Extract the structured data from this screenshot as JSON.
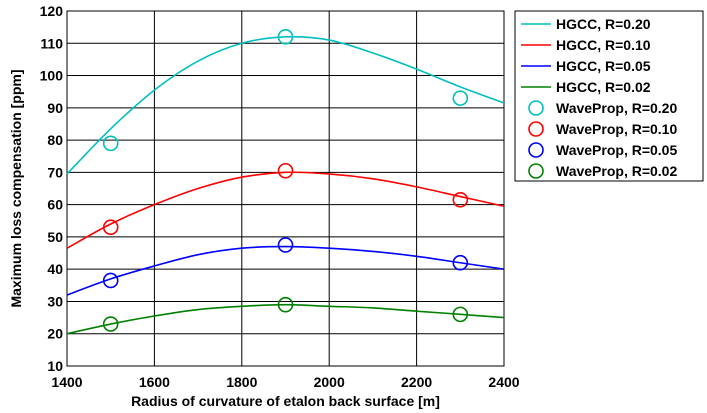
{
  "chart_data": {
    "type": "line",
    "xlabel": "Radius of curvature of etalon back surface [m]",
    "ylabel": "Maximum loss compensation [ppm]",
    "xlim": [
      1400,
      2400
    ],
    "ylim": [
      10,
      120
    ],
    "xticks": [
      1400,
      1600,
      1800,
      2000,
      2200,
      2400
    ],
    "yticks": [
      10,
      20,
      30,
      40,
      50,
      60,
      70,
      80,
      90,
      100,
      110,
      120
    ],
    "grid": true,
    "legend_position": "outside-right",
    "series": [
      {
        "name": "HGCC, R=0.20",
        "kind": "line",
        "color": "#00bfbf",
        "x": [
          1400,
          1500,
          1600,
          1700,
          1800,
          1900,
          2000,
          2100,
          2200,
          2300,
          2400
        ],
        "y": [
          69.5,
          83.5,
          95.5,
          104.5,
          110,
          112,
          111,
          107,
          102,
          96.5,
          91.5
        ]
      },
      {
        "name": "HGCC, R=0.10",
        "kind": "line",
        "color": "#ff0000",
        "x": [
          1400,
          1500,
          1600,
          1700,
          1800,
          1900,
          2000,
          2100,
          2200,
          2300,
          2400
        ],
        "y": [
          46.5,
          54,
          60,
          65,
          68.5,
          70,
          69.5,
          68,
          65.5,
          62.5,
          59.5
        ]
      },
      {
        "name": "HGCC, R=0.05",
        "kind": "line",
        "color": "#0000ff",
        "x": [
          1400,
          1500,
          1600,
          1700,
          1800,
          1900,
          2000,
          2100,
          2200,
          2300,
          2400
        ],
        "y": [
          32,
          37,
          41,
          44.5,
          46.5,
          47,
          46.5,
          45.5,
          44,
          42,
          40
        ]
      },
      {
        "name": "HGCC, R=0.02",
        "kind": "line",
        "color": "#008000",
        "x": [
          1400,
          1500,
          1600,
          1700,
          1800,
          1900,
          2000,
          2100,
          2200,
          2300,
          2400
        ],
        "y": [
          20,
          23,
          25.5,
          27.5,
          28.5,
          29,
          28.5,
          28,
          27,
          26,
          25
        ]
      },
      {
        "name": "WaveProp, R=0.20",
        "kind": "marker",
        "color": "#00bfbf",
        "x": [
          1500,
          1900,
          2300
        ],
        "y": [
          79,
          112,
          93
        ]
      },
      {
        "name": "WaveProp, R=0.10",
        "kind": "marker",
        "color": "#ff0000",
        "x": [
          1500,
          1900,
          2300
        ],
        "y": [
          53,
          70.5,
          61.5
        ]
      },
      {
        "name": "WaveProp, R=0.05",
        "kind": "marker",
        "color": "#0000ff",
        "x": [
          1500,
          1900,
          2300
        ],
        "y": [
          36.5,
          47.5,
          42
        ]
      },
      {
        "name": "WaveProp, R=0.02",
        "kind": "marker",
        "color": "#008000",
        "x": [
          1500,
          1900,
          2300
        ],
        "y": [
          23,
          29,
          26
        ]
      }
    ]
  }
}
